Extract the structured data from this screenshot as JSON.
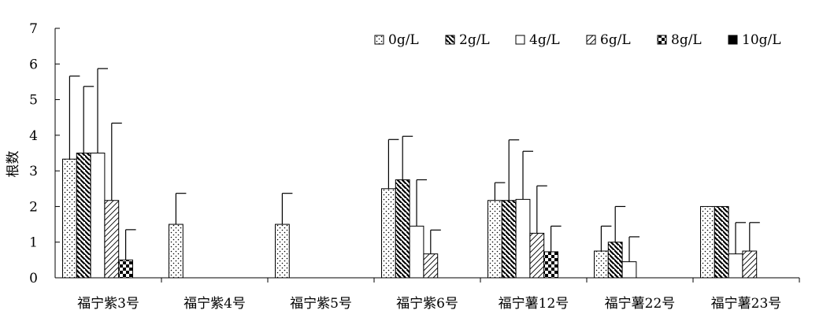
{
  "chart_data": {
    "type": "bar",
    "title": "",
    "xlabel": "",
    "ylabel": "根数",
    "ylim": [
      0,
      7
    ],
    "yticks": [
      0,
      1,
      2,
      3,
      4,
      5,
      6,
      7
    ],
    "grid": false,
    "legend_position": "top-right",
    "categories": [
      "福宁紫3号",
      "福宁紫4号",
      "福宁紫5号",
      "福宁紫6号",
      "福宁薯12号",
      "福宁薯22号",
      "福宁薯23号"
    ],
    "series": [
      {
        "name": "0g/L",
        "pattern": "dots",
        "values": [
          3.33,
          1.5,
          1.5,
          2.5,
          2.17,
          0.75,
          2.0
        ],
        "errors": [
          2.33,
          0.87,
          0.87,
          1.38,
          0.5,
          0.7,
          0
        ]
      },
      {
        "name": "2g/L",
        "pattern": "hatch-back",
        "values": [
          3.5,
          0,
          0,
          2.75,
          2.17,
          1.0,
          2.0
        ],
        "errors": [
          1.87,
          0,
          0,
          1.22,
          1.7,
          1.0,
          0
        ]
      },
      {
        "name": "4g/L",
        "pattern": "blank",
        "values": [
          3.5,
          0,
          0,
          1.45,
          2.2,
          0.45,
          0.67
        ],
        "errors": [
          2.37,
          0,
          0,
          1.3,
          1.35,
          0.7,
          0.88
        ]
      },
      {
        "name": "6g/L",
        "pattern": "hatch-fwd",
        "values": [
          2.17,
          0,
          0,
          0.67,
          1.25,
          0,
          0.75
        ],
        "errors": [
          2.17,
          0,
          0,
          0.67,
          1.33,
          0,
          0.8
        ]
      },
      {
        "name": "8g/L",
        "pattern": "checker",
        "values": [
          0.5,
          0,
          0,
          0,
          0.73,
          0,
          0
        ],
        "errors": [
          0.85,
          0,
          0,
          0,
          0.72,
          0,
          0
        ]
      },
      {
        "name": "10g/L",
        "pattern": "solid",
        "values": [
          0,
          0,
          0,
          0,
          0,
          0,
          0
        ],
        "errors": [
          0,
          0,
          0,
          0,
          0,
          0,
          0
        ]
      }
    ]
  }
}
